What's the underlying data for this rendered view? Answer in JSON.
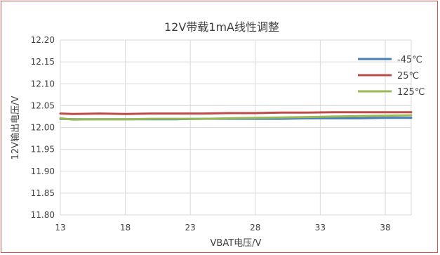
{
  "chart_data": {
    "type": "line",
    "title": "12V带载1mA线性调整",
    "xlabel": "VBAT电压/V",
    "ylabel": "12V输出电压/V",
    "xlim": [
      13,
      40
    ],
    "ylim": [
      11.8,
      12.2
    ],
    "x_ticks": [
      "13",
      "18",
      "23",
      "28",
      "33",
      "38"
    ],
    "y_ticks": [
      "12.20",
      "12.15",
      "12.10",
      "12.05",
      "12.00",
      "11.95",
      "11.90",
      "11.85",
      "11.80"
    ],
    "grid": true,
    "legend_position": "top-right",
    "x": [
      13,
      14,
      16,
      18,
      20,
      22,
      24,
      26,
      28,
      30,
      32,
      34,
      36,
      38,
      40
    ],
    "series": [
      {
        "name": "-45℃",
        "color": "#4a7ebb",
        "values": [
          12.02,
          12.019,
          12.019,
          12.019,
          12.019,
          12.019,
          12.02,
          12.02,
          12.02,
          12.02,
          12.021,
          12.021,
          12.021,
          12.022,
          12.022
        ]
      },
      {
        "name": "25℃",
        "color": "#be4b48",
        "values": [
          12.032,
          12.031,
          12.032,
          12.031,
          12.032,
          12.032,
          12.032,
          12.033,
          12.033,
          12.034,
          12.034,
          12.035,
          12.035,
          12.035,
          12.035
        ]
      },
      {
        "name": "125℃",
        "color": "#98b954",
        "values": [
          12.021,
          12.018,
          12.019,
          12.019,
          12.02,
          12.02,
          12.02,
          12.021,
          12.022,
          12.023,
          12.024,
          12.025,
          12.026,
          12.027,
          12.028
        ]
      }
    ]
  }
}
